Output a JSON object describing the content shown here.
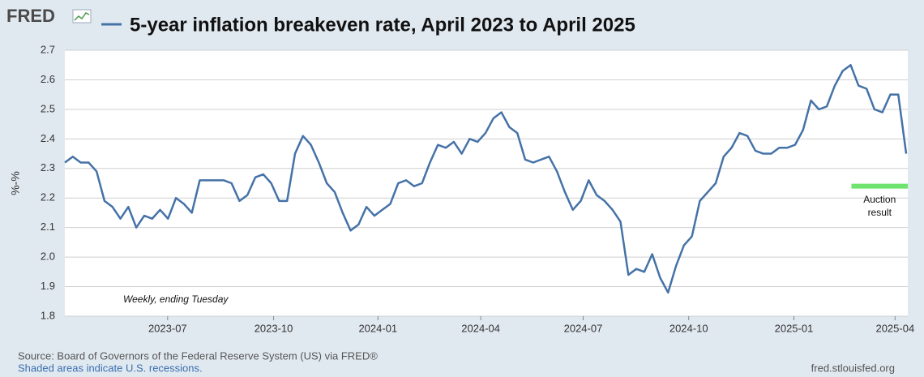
{
  "chart_data": {
    "type": "line",
    "logo": "FRED",
    "y_label": "%-%",
    "note": "Weekly, ending Tuesday",
    "source": "Source: Board of Governors of the Federal Reserve System (US) via FRED®",
    "recession_note": "Shaded areas indicate U.S. recessions.",
    "site": "fred.stlouisfed.org",
    "series": [
      {
        "name": "5-year inflation breakeven rate, April 2023 to April 2025",
        "color": "#4572a7",
        "values": [
          2.32,
          2.34,
          2.32,
          2.32,
          2.29,
          2.19,
          2.17,
          2.13,
          2.17,
          2.1,
          2.14,
          2.13,
          2.16,
          2.13,
          2.2,
          2.18,
          2.15,
          2.26,
          2.26,
          2.26,
          2.26,
          2.25,
          2.19,
          2.21,
          2.27,
          2.28,
          2.25,
          2.19,
          2.19,
          2.35,
          2.41,
          2.38,
          2.32,
          2.25,
          2.22,
          2.15,
          2.09,
          2.11,
          2.17,
          2.14,
          2.16,
          2.18,
          2.25,
          2.26,
          2.24,
          2.25,
          2.32,
          2.38,
          2.37,
          2.39,
          2.35,
          2.4,
          2.39,
          2.42,
          2.47,
          2.49,
          2.44,
          2.42,
          2.33,
          2.32,
          2.33,
          2.34,
          2.29,
          2.22,
          2.16,
          2.19,
          2.26,
          2.21,
          2.19,
          2.16,
          2.12,
          1.94,
          1.96,
          1.95,
          2.01,
          1.93,
          1.88,
          1.97,
          2.04,
          2.07,
          2.19,
          2.22,
          2.25,
          2.34,
          2.37,
          2.42,
          2.41,
          2.36,
          2.35,
          2.35,
          2.37,
          2.37,
          2.38,
          2.43,
          2.53,
          2.5,
          2.51,
          2.58,
          2.63,
          2.65,
          2.58,
          2.57,
          2.5,
          2.49,
          2.55,
          2.55,
          2.35
        ]
      }
    ],
    "auction": {
      "lines": [
        "Auction",
        "result"
      ],
      "value": 2.24,
      "x": [
        99.1,
        106.2
      ],
      "color": "#6ee36e"
    },
    "xlim": [
      0,
      106.2
    ],
    "xticks": [
      {
        "value": 12.95,
        "label": "2023-07"
      },
      {
        "value": 26.3,
        "label": "2023-10"
      },
      {
        "value": 39.45,
        "label": "2024-01"
      },
      {
        "value": 52.4,
        "label": "2024-04"
      },
      {
        "value": 65.3,
        "label": "2024-07"
      },
      {
        "value": 78.6,
        "label": "2024-10"
      },
      {
        "value": 91.85,
        "label": "2025-01"
      },
      {
        "value": 104.6,
        "label": "2025-04"
      }
    ],
    "ylim": [
      1.8,
      2.7
    ],
    "yticks": [
      1.8,
      1.9,
      {
        "value": 2,
        "label": "2.0"
      },
      2.1,
      2.2,
      2.3,
      2.4,
      2.5,
      2.6,
      2.7
    ],
    "grid": true
  }
}
